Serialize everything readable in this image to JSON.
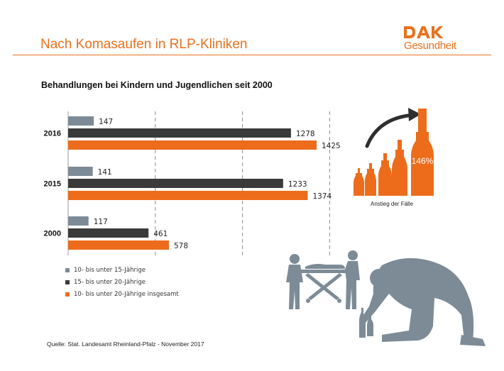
{
  "header": {
    "title": "Nach Komasaufen in RLP-Kliniken",
    "logo_text": "Gesundheit",
    "brand_color": "#e8711c"
  },
  "chart_data": {
    "type": "bar",
    "orientation": "horizontal",
    "title": "Behandlungen bei Kindern und Jugendlichen seit 2000",
    "categories": [
      "2016",
      "2015",
      "2000"
    ],
    "series": [
      {
        "name": "10- bis unter 15-Jährige",
        "color": "#7d8b97",
        "values": [
          147,
          141,
          117
        ]
      },
      {
        "name": "15- bis unter 20-Jährige",
        "color": "#3a3a3a",
        "values": [
          1278,
          1233,
          461
        ]
      },
      {
        "name": "10- bis unter 20-Jährige insgesamt",
        "color": "#ec6c1c",
        "values": [
          1425,
          1374,
          578
        ]
      }
    ],
    "xlim": [
      0,
      1500
    ],
    "grid": true,
    "legend_position": "bottom-left"
  },
  "inset": {
    "percent_label": "146%",
    "caption": "Anstieg der Fälle",
    "icon": "bottles-rising-icon"
  },
  "decorations": {
    "illustration": "ambulance-stretcher-and-drunk-person-silhouettes",
    "silhouette_color": "#7d8b97"
  },
  "footer": {
    "source": "Quelle: Stat. Landesamt Rheinland-Pfalz - November 2017"
  }
}
